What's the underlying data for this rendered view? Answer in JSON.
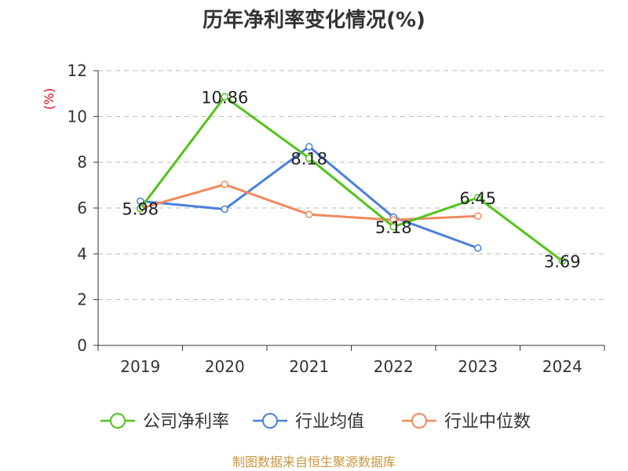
{
  "chart_data": {
    "type": "line",
    "title": "历年净利率变化情况(%)",
    "ylabel": "(%)",
    "categories": [
      "2019",
      "2020",
      "2021",
      "2022",
      "2023",
      "2024"
    ],
    "ylim": [
      0,
      12
    ],
    "yticks": [
      0,
      2,
      4,
      6,
      8,
      10,
      12
    ],
    "grid": true,
    "legend_position": "bottom",
    "series": [
      {
        "name": "公司净利率",
        "color": "#52c41a",
        "values": [
          5.98,
          10.86,
          8.18,
          5.18,
          6.45,
          3.69
        ],
        "labels": [
          "5.98",
          "10.86",
          "8.18",
          "5.18",
          "6.45",
          "3.69"
        ]
      },
      {
        "name": "行业均值",
        "color": "#4a7fe0",
        "values": [
          6.3,
          5.95,
          8.68,
          5.6,
          4.25,
          null
        ]
      },
      {
        "name": "行业中位数",
        "color": "#f08a5d",
        "values": [
          5.98,
          7.03,
          5.72,
          5.48,
          5.65,
          null
        ]
      }
    ]
  },
  "source": "制图数据来自恒生聚源数据库"
}
